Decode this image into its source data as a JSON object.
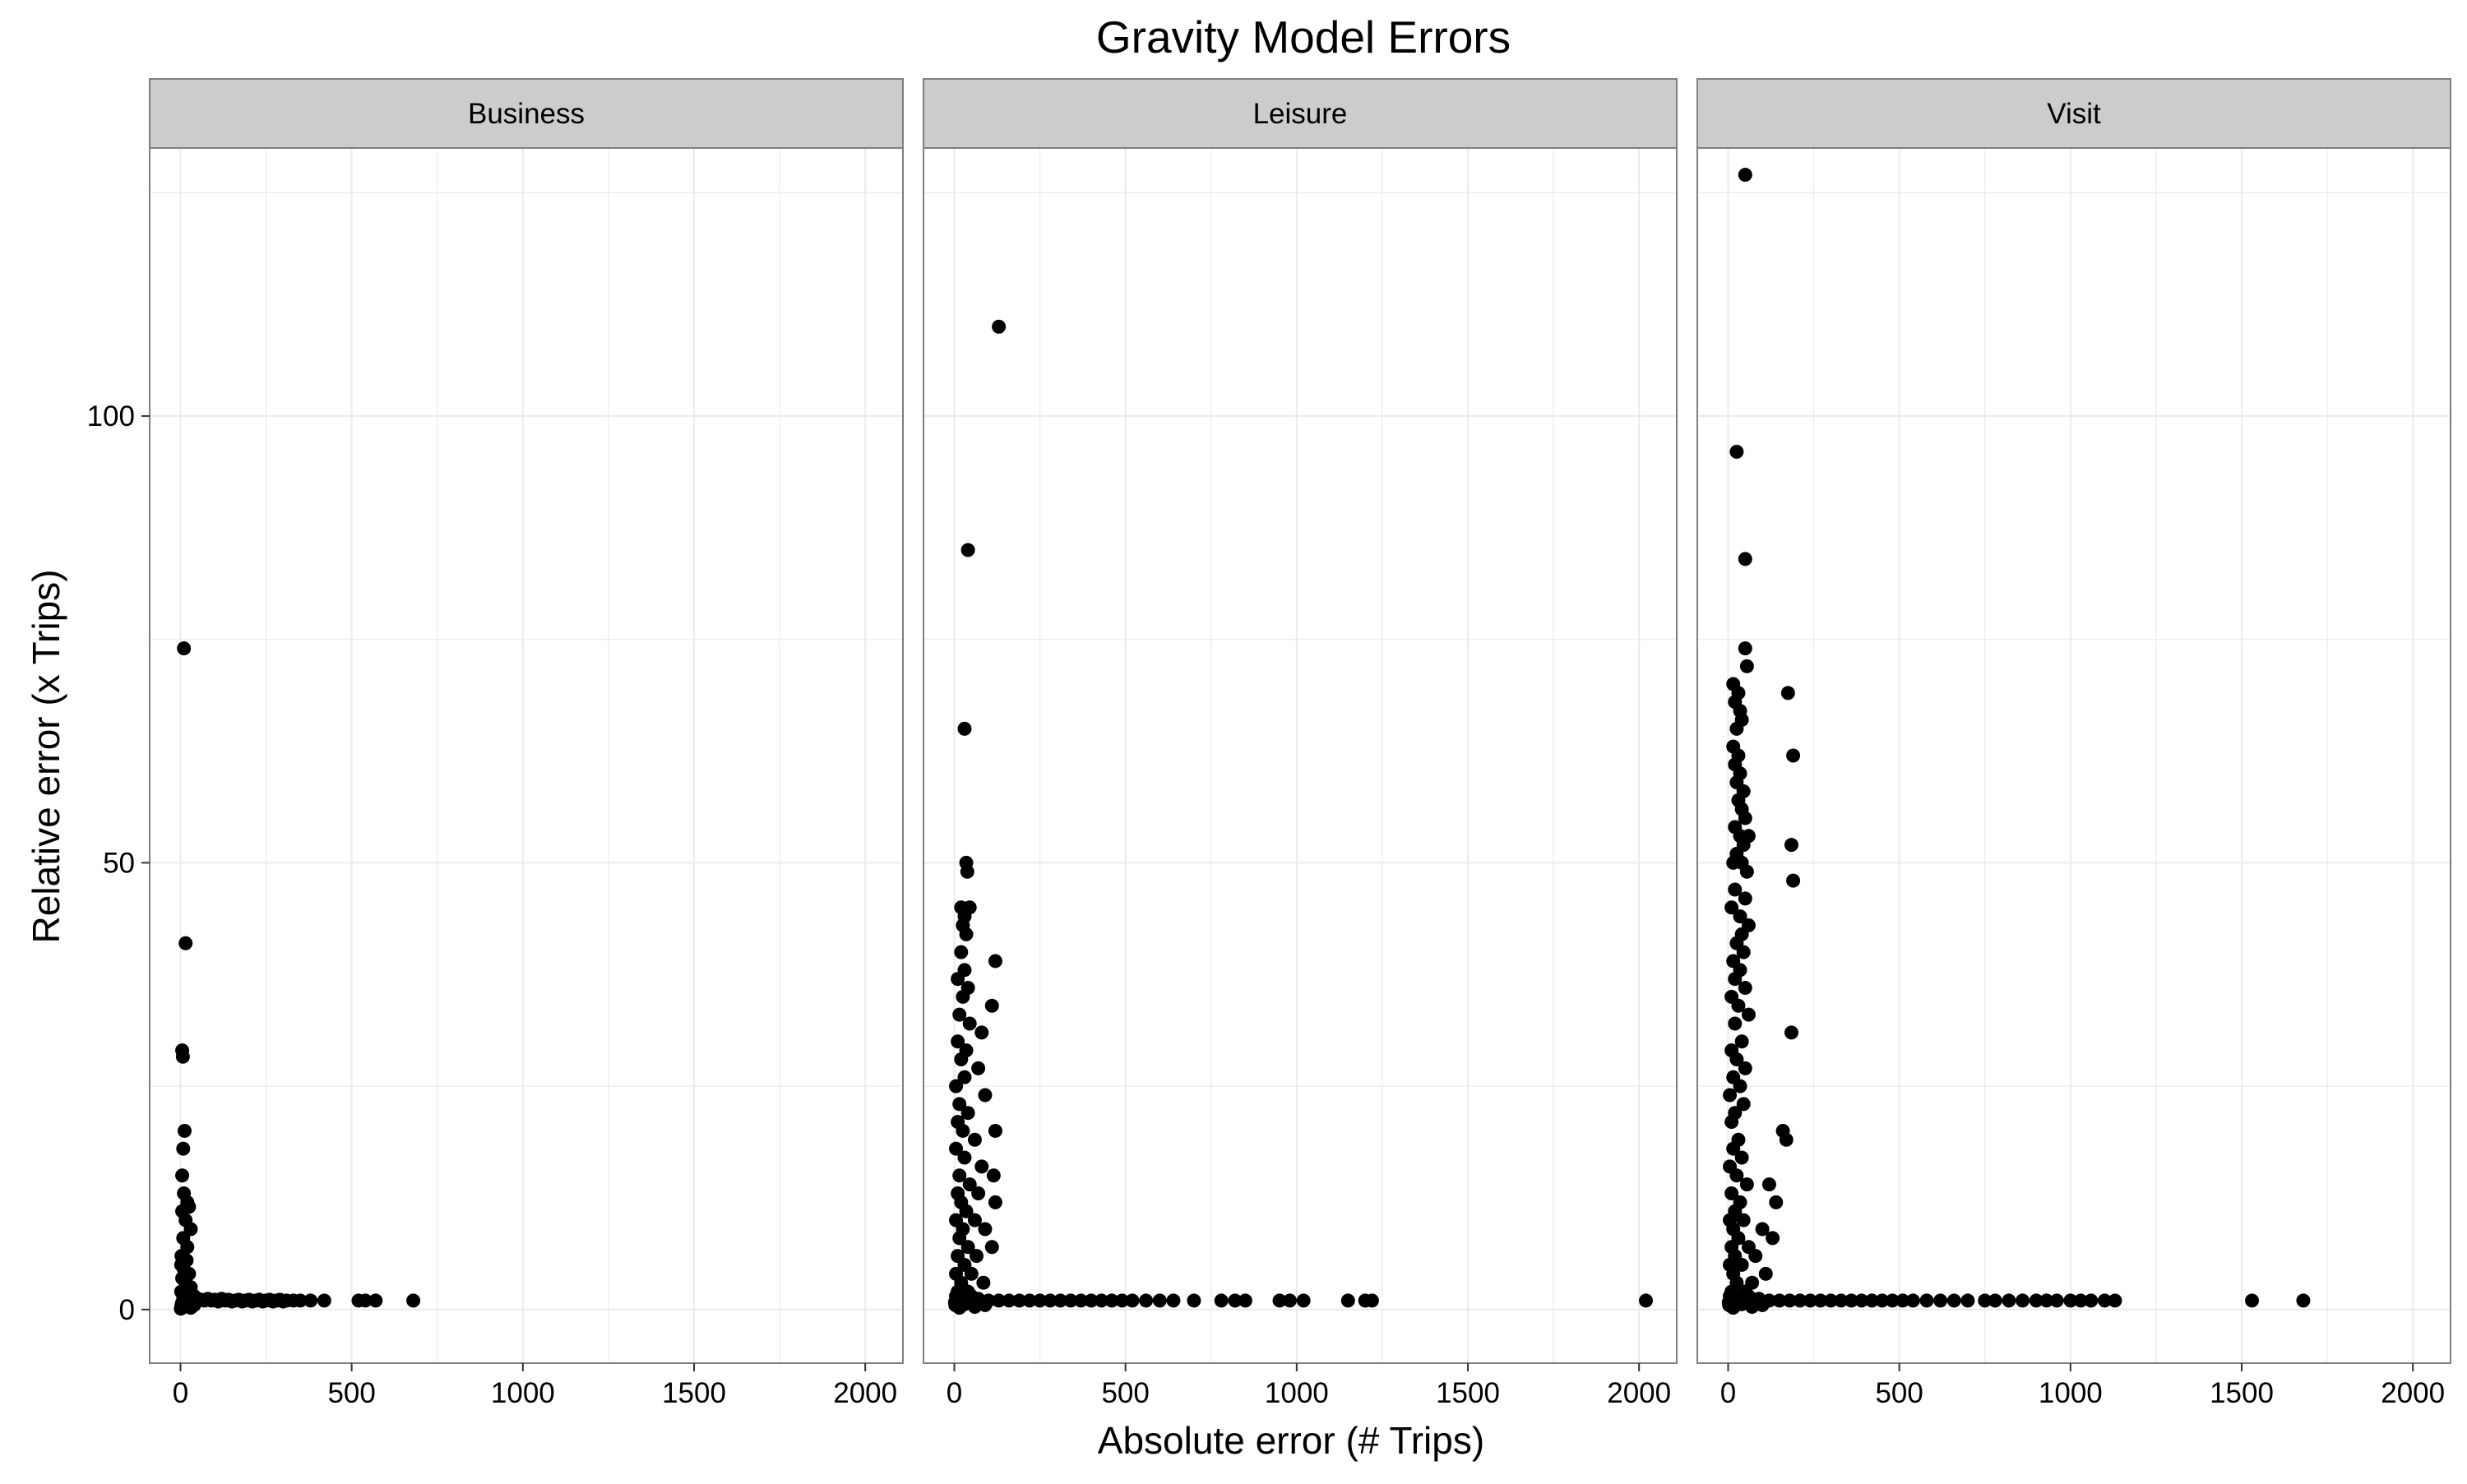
{
  "chart_data": {
    "type": "scatter",
    "title": "Gravity Model Errors",
    "xlabel": "Absolute error (# Trips)",
    "ylabel": "Relative error (x Trips)",
    "xlim": [
      -90,
      2110
    ],
    "ylim": [
      -6,
      130
    ],
    "x_ticks": [
      0,
      500,
      1000,
      1500,
      2000
    ],
    "x_tick_labels": [
      "0",
      "500",
      "1000",
      "1500",
      "2000"
    ],
    "y_ticks": [
      0,
      50,
      100
    ],
    "y_tick_labels": [
      "0",
      "50",
      "100"
    ],
    "grid": true,
    "colors": {
      "points": "#000000",
      "strip_fill": "#cccccc",
      "grid": "#ebebeb",
      "panel_border": "#7f7f7f"
    },
    "panels": [
      {
        "name": "Business",
        "points": [
          [
            10,
            74
          ],
          [
            15,
            41
          ],
          [
            5,
            29
          ],
          [
            7,
            28.3
          ],
          [
            12,
            20
          ],
          [
            8,
            18
          ],
          [
            5,
            15
          ],
          [
            10,
            13
          ],
          [
            20,
            12
          ],
          [
            25,
            11.5
          ],
          [
            5,
            11
          ],
          [
            15,
            10
          ],
          [
            30,
            9
          ],
          [
            8,
            8
          ],
          [
            20,
            7
          ],
          [
            3,
            6
          ],
          [
            18,
            5.5
          ],
          [
            2,
            5
          ],
          [
            10,
            4.5
          ],
          [
            25,
            4
          ],
          [
            5,
            3.5
          ],
          [
            15,
            3
          ],
          [
            30,
            2.5
          ],
          [
            2,
            2
          ],
          [
            8,
            1.5
          ],
          [
            20,
            1.2
          ],
          [
            40,
            1.5
          ],
          [
            50,
            1.2
          ],
          [
            60,
            1.1
          ],
          [
            70,
            1.0
          ],
          [
            80,
            1.2
          ],
          [
            90,
            1.0
          ],
          [
            100,
            1.1
          ],
          [
            110,
            0.9
          ],
          [
            120,
            1.2
          ],
          [
            130,
            1.0
          ],
          [
            140,
            1.1
          ],
          [
            150,
            0.9
          ],
          [
            160,
            1.0
          ],
          [
            170,
            1.1
          ],
          [
            180,
            0.9
          ],
          [
            190,
            1.0
          ],
          [
            200,
            1.1
          ],
          [
            210,
            0.9
          ],
          [
            220,
            1.0
          ],
          [
            230,
            1.1
          ],
          [
            240,
            0.9
          ],
          [
            250,
            1.0
          ],
          [
            260,
            1.1
          ],
          [
            270,
            0.9
          ],
          [
            280,
            1.0
          ],
          [
            290,
            1.1
          ],
          [
            300,
            0.9
          ],
          [
            310,
            1.0
          ],
          [
            330,
            1.0
          ],
          [
            350,
            1.0
          ],
          [
            380,
            1.0
          ],
          [
            420,
            1.0
          ],
          [
            520,
            1.0
          ],
          [
            540,
            1.0
          ],
          [
            570,
            1.0
          ],
          [
            680,
            1.0
          ],
          [
            3,
            0.5
          ],
          [
            10,
            0.3
          ],
          [
            20,
            0.6
          ],
          [
            30,
            0.2
          ],
          [
            40,
            0.5
          ],
          [
            1,
            0.1
          ],
          [
            5,
            0.8
          ],
          [
            15,
            0.4
          ]
        ]
      },
      {
        "name": "Leisure",
        "points": [
          [
            130,
            110
          ],
          [
            40,
            85
          ],
          [
            30,
            65
          ],
          [
            35,
            50
          ],
          [
            38,
            49
          ],
          [
            20,
            45
          ],
          [
            45,
            45
          ],
          [
            30,
            44
          ],
          [
            25,
            43
          ],
          [
            35,
            42
          ],
          [
            20,
            40
          ],
          [
            120,
            39
          ],
          [
            30,
            38
          ],
          [
            10,
            37
          ],
          [
            40,
            36
          ],
          [
            25,
            35
          ],
          [
            110,
            34
          ],
          [
            15,
            33
          ],
          [
            45,
            32
          ],
          [
            80,
            31
          ],
          [
            10,
            30
          ],
          [
            35,
            29
          ],
          [
            20,
            28
          ],
          [
            70,
            27
          ],
          [
            30,
            26
          ],
          [
            5,
            25
          ],
          [
            90,
            24
          ],
          [
            15,
            23
          ],
          [
            40,
            22
          ],
          [
            10,
            21
          ],
          [
            120,
            20
          ],
          [
            25,
            20
          ],
          [
            60,
            19
          ],
          [
            5,
            18
          ],
          [
            30,
            17
          ],
          [
            80,
            16
          ],
          [
            15,
            15
          ],
          [
            115,
            15
          ],
          [
            45,
            14
          ],
          [
            10,
            13
          ],
          [
            70,
            13
          ],
          [
            20,
            12
          ],
          [
            120,
            12
          ],
          [
            35,
            11
          ],
          [
            5,
            10
          ],
          [
            60,
            10
          ],
          [
            25,
            9
          ],
          [
            90,
            9
          ],
          [
            15,
            8
          ],
          [
            40,
            7
          ],
          [
            110,
            7
          ],
          [
            10,
            6
          ],
          [
            65,
            6
          ],
          [
            30,
            5
          ],
          [
            5,
            4
          ],
          [
            50,
            4
          ],
          [
            20,
            3
          ],
          [
            85,
            3
          ],
          [
            10,
            2
          ],
          [
            40,
            2
          ],
          [
            5,
            1.5
          ],
          [
            25,
            1.2
          ],
          [
            50,
            1.5
          ],
          [
            70,
            1.2
          ],
          [
            100,
            1.0
          ],
          [
            130,
            1.0
          ],
          [
            160,
            1.0
          ],
          [
            190,
            1.0
          ],
          [
            220,
            1.0
          ],
          [
            250,
            1.0
          ],
          [
            280,
            1.0
          ],
          [
            310,
            1.0
          ],
          [
            340,
            1.0
          ],
          [
            370,
            1.0
          ],
          [
            400,
            1.0
          ],
          [
            430,
            1.0
          ],
          [
            460,
            1.0
          ],
          [
            490,
            1.0
          ],
          [
            520,
            1.0
          ],
          [
            560,
            1.0
          ],
          [
            600,
            1.0
          ],
          [
            640,
            1.0
          ],
          [
            700,
            1.0
          ],
          [
            780,
            1.0
          ],
          [
            820,
            1.0
          ],
          [
            850,
            1.0
          ],
          [
            950,
            1.0
          ],
          [
            980,
            1.0
          ],
          [
            1020,
            1.0
          ],
          [
            1150,
            1.0
          ],
          [
            1200,
            1.0
          ],
          [
            1220,
            1.0
          ],
          [
            2020,
            1.0
          ],
          [
            3,
            0.5
          ],
          [
            15,
            0.2
          ],
          [
            30,
            0.6
          ],
          [
            60,
            0.3
          ],
          [
            2,
            0.8
          ],
          [
            8,
            0.4
          ],
          [
            90,
            0.5
          ]
        ]
      },
      {
        "name": "Visit",
        "points": [
          [
            50,
            127
          ],
          [
            25,
            96
          ],
          [
            50,
            84
          ],
          [
            50,
            74
          ],
          [
            55,
            72
          ],
          [
            15,
            70
          ],
          [
            30,
            69
          ],
          [
            175,
            69
          ],
          [
            20,
            68
          ],
          [
            35,
            67
          ],
          [
            40,
            66
          ],
          [
            25,
            65
          ],
          [
            15,
            63
          ],
          [
            190,
            62
          ],
          [
            30,
            62
          ],
          [
            20,
            61
          ],
          [
            35,
            60
          ],
          [
            25,
            59
          ],
          [
            45,
            58
          ],
          [
            30,
            57
          ],
          [
            40,
            56
          ],
          [
            50,
            55
          ],
          [
            20,
            54
          ],
          [
            35,
            53
          ],
          [
            60,
            53
          ],
          [
            185,
            52
          ],
          [
            45,
            52
          ],
          [
            25,
            51
          ],
          [
            15,
            50
          ],
          [
            40,
            50
          ],
          [
            55,
            49
          ],
          [
            190,
            48
          ],
          [
            20,
            47
          ],
          [
            50,
            46
          ],
          [
            10,
            45
          ],
          [
            35,
            44
          ],
          [
            60,
            43
          ],
          [
            40,
            42
          ],
          [
            25,
            41
          ],
          [
            45,
            40
          ],
          [
            15,
            39
          ],
          [
            35,
            38
          ],
          [
            20,
            37
          ],
          [
            50,
            36
          ],
          [
            10,
            35
          ],
          [
            30,
            34
          ],
          [
            60,
            33
          ],
          [
            20,
            32
          ],
          [
            185,
            31
          ],
          [
            40,
            30
          ],
          [
            10,
            29
          ],
          [
            25,
            28
          ],
          [
            50,
            27
          ],
          [
            15,
            26
          ],
          [
            35,
            25
          ],
          [
            5,
            24
          ],
          [
            45,
            23
          ],
          [
            20,
            22
          ],
          [
            10,
            21
          ],
          [
            160,
            20
          ],
          [
            30,
            19
          ],
          [
            170,
            19
          ],
          [
            15,
            18
          ],
          [
            40,
            17
          ],
          [
            5,
            16
          ],
          [
            25,
            15
          ],
          [
            55,
            14
          ],
          [
            120,
            14
          ],
          [
            10,
            13
          ],
          [
            35,
            12
          ],
          [
            140,
            12
          ],
          [
            20,
            11
          ],
          [
            5,
            10
          ],
          [
            45,
            10
          ],
          [
            15,
            9
          ],
          [
            100,
            9
          ],
          [
            30,
            8
          ],
          [
            130,
            8
          ],
          [
            10,
            7
          ],
          [
            60,
            7
          ],
          [
            20,
            6
          ],
          [
            80,
            6
          ],
          [
            5,
            5
          ],
          [
            40,
            5
          ],
          [
            15,
            4
          ],
          [
            110,
            4
          ],
          [
            25,
            3
          ],
          [
            70,
            3
          ],
          [
            10,
            2
          ],
          [
            50,
            2
          ],
          [
            5,
            1.5
          ],
          [
            30,
            1.2
          ],
          [
            60,
            1.5
          ],
          [
            90,
            1.2
          ],
          [
            120,
            1.0
          ],
          [
            150,
            1.0
          ],
          [
            180,
            1.0
          ],
          [
            210,
            1.0
          ],
          [
            240,
            1.0
          ],
          [
            270,
            1.0
          ],
          [
            300,
            1.0
          ],
          [
            330,
            1.0
          ],
          [
            360,
            1.0
          ],
          [
            390,
            1.0
          ],
          [
            420,
            1.0
          ],
          [
            450,
            1.0
          ],
          [
            480,
            1.0
          ],
          [
            510,
            1.0
          ],
          [
            540,
            1.0
          ],
          [
            580,
            1.0
          ],
          [
            620,
            1.0
          ],
          [
            660,
            1.0
          ],
          [
            700,
            1.0
          ],
          [
            750,
            1.0
          ],
          [
            780,
            1.0
          ],
          [
            820,
            1.0
          ],
          [
            860,
            1.0
          ],
          [
            900,
            1.0
          ],
          [
            930,
            1.0
          ],
          [
            960,
            1.0
          ],
          [
            1000,
            1.0
          ],
          [
            1030,
            1.0
          ],
          [
            1060,
            1.0
          ],
          [
            1100,
            1.0
          ],
          [
            1130,
            1.0
          ],
          [
            1530,
            1.0
          ],
          [
            1680,
            1.0
          ],
          [
            3,
            0.5
          ],
          [
            15,
            0.2
          ],
          [
            40,
            0.6
          ],
          [
            70,
            0.3
          ],
          [
            2,
            0.8
          ],
          [
            8,
            0.4
          ],
          [
            100,
            0.5
          ]
        ]
      }
    ]
  }
}
